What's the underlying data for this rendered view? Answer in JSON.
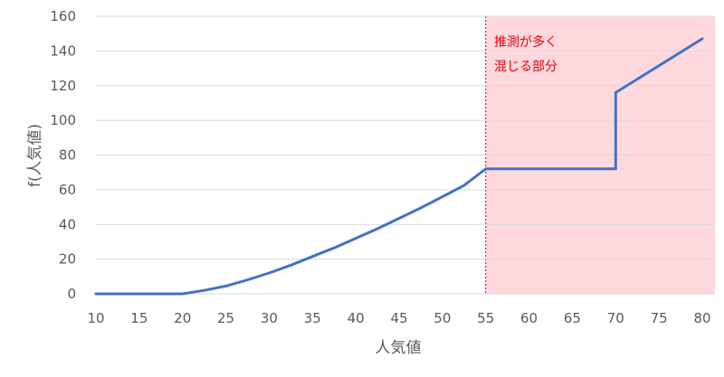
{
  "chart_data": {
    "type": "line",
    "xlabel": "人気値",
    "ylabel": "f(人気値)",
    "xlim": [
      10,
      80
    ],
    "ylim": [
      0,
      160
    ],
    "x_ticks": [
      "10",
      "15",
      "20",
      "25",
      "30",
      "35",
      "40",
      "45",
      "50",
      "55",
      "60",
      "65",
      "70",
      "75",
      "80"
    ],
    "y_ticks": [
      "0",
      "20",
      "40",
      "60",
      "80",
      "100",
      "120",
      "140",
      "160"
    ],
    "grid": "horizontal",
    "series": [
      {
        "color": "#4472c4",
        "points": [
          [
            10,
            0
          ],
          [
            20,
            0
          ],
          [
            22.5,
            2
          ],
          [
            25,
            4.5
          ],
          [
            27.5,
            8
          ],
          [
            30,
            12
          ],
          [
            32.5,
            16.5
          ],
          [
            35,
            21.5
          ],
          [
            37.5,
            26.5
          ],
          [
            40,
            32
          ],
          [
            42.5,
            37.5
          ],
          [
            45,
            43.5
          ],
          [
            47.5,
            49.5
          ],
          [
            50,
            56
          ],
          [
            52.5,
            62.5
          ],
          [
            55,
            72
          ],
          [
            70,
            72
          ],
          [
            70,
            116
          ],
          [
            80,
            147
          ]
        ]
      }
    ],
    "highlight_region": {
      "x_from": 55,
      "x_to": 80,
      "fill": "#fdd9dd",
      "line_color": "#c00000",
      "label_lines": [
        "推測が多く",
        "混じる部分"
      ]
    }
  }
}
